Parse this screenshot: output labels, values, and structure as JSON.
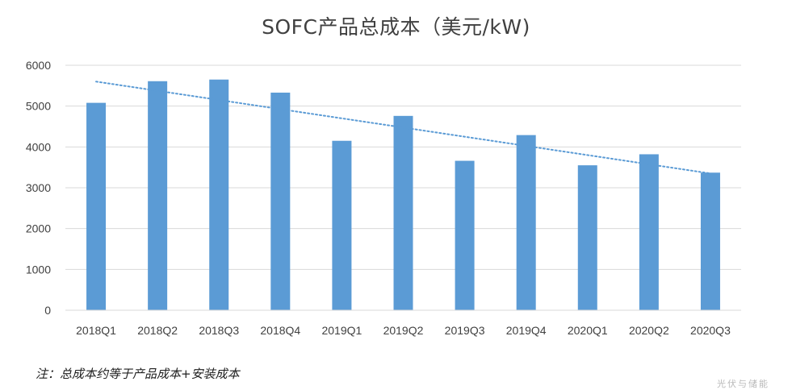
{
  "chart_data": {
    "type": "bar",
    "title": "SOFC产品总成本（美元/kW)",
    "categories": [
      "2018Q1",
      "2018Q2",
      "2018Q3",
      "2018Q4",
      "2019Q1",
      "2019Q2",
      "2019Q3",
      "2019Q4",
      "2020Q1",
      "2020Q2",
      "2020Q3"
    ],
    "series": [
      {
        "name": "SOFC产品总成本",
        "values": [
          5080,
          5610,
          5650,
          5330,
          4150,
          4760,
          3660,
          4290,
          3550,
          3820,
          3370
        ]
      }
    ],
    "trendline": {
      "type": "linear",
      "start": 5600,
      "end": 3350
    },
    "ylim": [
      0,
      6000
    ],
    "yticks": [
      0,
      1000,
      2000,
      3000,
      4000,
      5000,
      6000
    ],
    "grid": true,
    "xlabel": "",
    "ylabel": "",
    "note": "注：总成本约等于产品成本+安装成本",
    "colors": {
      "bar": "#5B9BD5",
      "trend": "#5B9BD5",
      "grid": "#D9D9D9",
      "text": "#404040"
    }
  },
  "watermark": "光伏与储能"
}
